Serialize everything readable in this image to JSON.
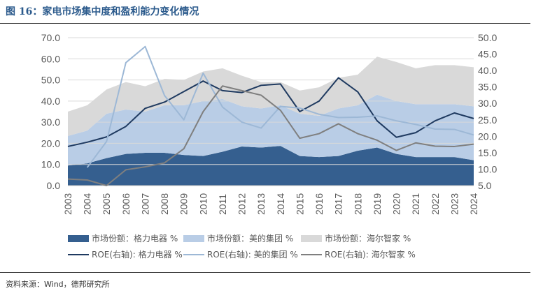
{
  "title": "图 16：家电市场集中度和盈利能力变化情况",
  "source": "资料来源：Wind，德邦研究所",
  "chart_data": {
    "type": "area+line",
    "categories": [
      "2003",
      "2004",
      "2005",
      "2006",
      "2007",
      "2008",
      "2009",
      "2010",
      "2011",
      "2012",
      "2013",
      "2014",
      "2015",
      "2016",
      "2017",
      "2018",
      "2019",
      "2020",
      "2021",
      "2022",
      "2023",
      "2024"
    ],
    "left_axis": {
      "range": [
        0,
        70
      ],
      "ticks": [
        "0.0",
        "10.0",
        "20.0",
        "30.0",
        "40.0",
        "50.0",
        "60.0",
        "70.0"
      ]
    },
    "right_axis": {
      "range": [
        5,
        50
      ],
      "ticks": [
        "5.0",
        "10.0",
        "15.0",
        "20.0",
        "25.0",
        "30.0",
        "35.0",
        "40.0",
        "45.0",
        "50.0"
      ]
    },
    "grid": true,
    "legend_position": "bottom",
    "stacked_area_series": [
      {
        "name": "市场份额：格力电器 %",
        "color": "#355f8f",
        "values": [
          9.5,
          10.5,
          13,
          15,
          15.5,
          15.5,
          14.5,
          14,
          16,
          18.5,
          18,
          18.8,
          14,
          13.5,
          14,
          16.5,
          18,
          15,
          13.5,
          13.5,
          13.5,
          12
        ]
      },
      {
        "name": "市场份额：美的集团 %",
        "color": "#b9cde6",
        "values": [
          14,
          15.5,
          21,
          21,
          19.5,
          22.5,
          23.5,
          26,
          25,
          19,
          18.5,
          19.2,
          20,
          19.5,
          22.5,
          21.5,
          25,
          25,
          25,
          25,
          25,
          25.5
        ]
      },
      {
        "name": "市场份额：海尔智家 %",
        "color": "#d9d9d9",
        "values": [
          11.5,
          12,
          11.5,
          13,
          12,
          12.5,
          12,
          14,
          14.5,
          14.5,
          12.5,
          11,
          11,
          13.5,
          14.5,
          14.5,
          18,
          18.5,
          17,
          18.5,
          18.5,
          18.5
        ]
      }
    ],
    "line_series": [
      {
        "name": "ROE(右轴): 格力电器 %",
        "color": "#1f3a60",
        "values": [
          16.9,
          18.2,
          19.8,
          23,
          28.5,
          30.4,
          33.6,
          36.8,
          33.9,
          33.3,
          35.5,
          35.9,
          27.5,
          30.7,
          37.8,
          33.5,
          24.7,
          19.7,
          21.1,
          24.7,
          27.1,
          25.4
        ]
      },
      {
        "name": "ROE(右轴): 美的集团 %",
        "color": "#9db8d6",
        "values": [
          null,
          10.5,
          18.4,
          42.4,
          47.3,
          32.4,
          25,
          39.2,
          28.9,
          24.3,
          22.5,
          29.1,
          28.6,
          26.7,
          25.7,
          25.8,
          26.2,
          24.7,
          23.6,
          22.2,
          22.1,
          20.4
        ]
      },
      {
        "name": "ROE(右轴): 海尔智家 %",
        "color": "#7f7f7f",
        "values": [
          7,
          6.7,
          5,
          9.8,
          10.7,
          11.9,
          16.2,
          27.5,
          35.3,
          33.9,
          32.5,
          27.9,
          19.4,
          20.8,
          23.8,
          20.8,
          18.8,
          15.7,
          18,
          17,
          16.9,
          17.6
        ]
      }
    ]
  }
}
